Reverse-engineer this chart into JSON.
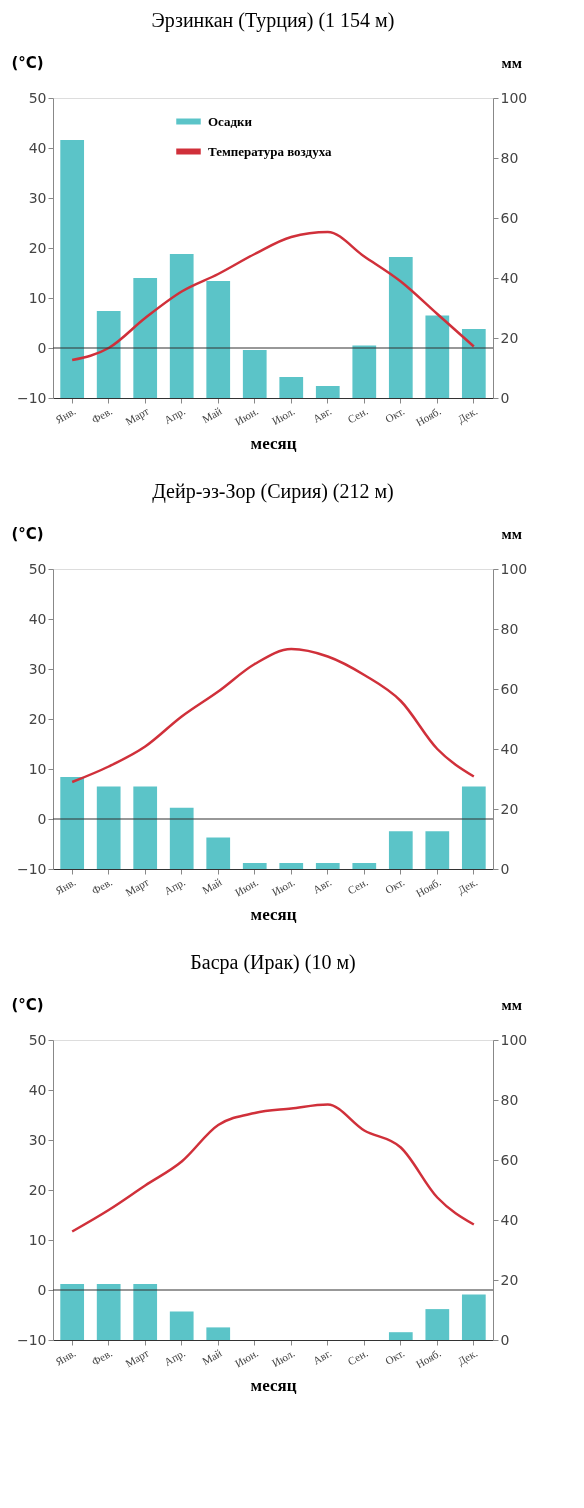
{
  "chart_data": [
    {
      "type": "bar",
      "title": "Эрзинкан (Турция) (1 154 м)",
      "xlabel": "месяц",
      "ylabel": "(°C)",
      "y2label": "мм",
      "categories": [
        "Янв.",
        "Фев.",
        "Март",
        "Апр.",
        "Май",
        "Июн.",
        "Июл.",
        "Авг.",
        "Сен.",
        "Окт.",
        "Нояб.",
        "Дек."
      ],
      "series": [
        {
          "name": "Осадки",
          "axis": "y2",
          "color": "#5bc4c8",
          "values": [
            86,
            29,
            40,
            48,
            39,
            16,
            7,
            4,
            17.5,
            47,
            27.5,
            23
          ]
        },
        {
          "name": "Температура воздуха",
          "type": "line",
          "color": "#d0303a",
          "values": [
            -2.4,
            0,
            6,
            11.3,
            14.8,
            18.8,
            22.2,
            23.2,
            18.3,
            13.3,
            6.8,
            0.3
          ]
        }
      ],
      "ylim": [
        -10,
        50
      ],
      "yticks": [
        -10,
        0,
        10,
        20,
        30,
        40,
        50
      ],
      "y2lim": [
        0,
        100
      ],
      "y2ticks": [
        0,
        20,
        40,
        60,
        80,
        100
      ],
      "ref_lines": [
        {
          "axis": "y",
          "value": 0,
          "color": "#333333"
        }
      ],
      "legend": "top",
      "grid": false,
      "marker": "none",
      "line_style": "solid"
    },
    {
      "type": "bar",
      "title": "Дейр-эз-Зор (Сирия) (212 м)",
      "xlabel": "месяц",
      "ylabel": "(°C)",
      "y2label": "мм",
      "categories": [
        "Янв.",
        "Фев.",
        "Март",
        "Апр.",
        "Май",
        "Июн.",
        "Июл.",
        "Авг.",
        "Сен.",
        "Окт.",
        "Нояб.",
        "Дек."
      ],
      "series": [
        {
          "axis": "y2",
          "color": "#5bc4c8",
          "values": [
            30.7,
            27.5,
            27.5,
            20.4,
            10.5,
            2,
            2,
            2,
            2,
            12.6,
            12.6,
            27.5
          ]
        },
        {
          "type": "line",
          "color": "#d0303a",
          "values": [
            7.4,
            10.5,
            14.5,
            20.5,
            25.5,
            31,
            34,
            32.5,
            28.8,
            23.6,
            14,
            8.5
          ]
        }
      ],
      "ylim": [
        -10,
        50
      ],
      "yticks": [
        -10,
        0,
        10,
        20,
        30,
        40,
        50
      ],
      "y2lim": [
        0,
        100
      ],
      "y2ticks": [
        0,
        20,
        40,
        60,
        80,
        100
      ],
      "ref_lines": [
        {
          "axis": "y",
          "value": 0,
          "color": "#333333"
        }
      ],
      "legend": false,
      "grid": false,
      "marker": "none",
      "line_style": "solid"
    },
    {
      "type": "bar",
      "title": "Басра (Ирак) (10 м)",
      "xlabel": "месяц",
      "ylabel": "(°C)",
      "y2label": "мм",
      "categories": [
        "Янв.",
        "Фев.",
        "Март",
        "Апр.",
        "Май",
        "Июн.",
        "Июл.",
        "Авг.",
        "Сен.",
        "Окт.",
        "Нояб.",
        "Дек."
      ],
      "series": [
        {
          "axis": "y2",
          "color": "#5bc4c8",
          "values": [
            18.7,
            18.7,
            18.7,
            9.5,
            4.2,
            0,
            0,
            0,
            0,
            2.6,
            10.3,
            15.2
          ]
        },
        {
          "type": "line",
          "color": "#d0303a",
          "values": [
            11.7,
            16,
            20.9,
            25.7,
            33,
            35.4,
            36.3,
            37.1,
            31.9,
            28.5,
            18.5,
            13.1
          ]
        }
      ],
      "ylim": [
        -10,
        50
      ],
      "yticks": [
        -10,
        0,
        10,
        20,
        30,
        40,
        50
      ],
      "y2lim": [
        0,
        100
      ],
      "y2ticks": [
        0,
        20,
        40,
        60,
        80,
        100
      ],
      "ref_lines": [
        {
          "axis": "y",
          "value": 0,
          "color": "#333333"
        }
      ],
      "legend": false,
      "grid": false,
      "marker": "none",
      "line_style": "solid"
    }
  ]
}
